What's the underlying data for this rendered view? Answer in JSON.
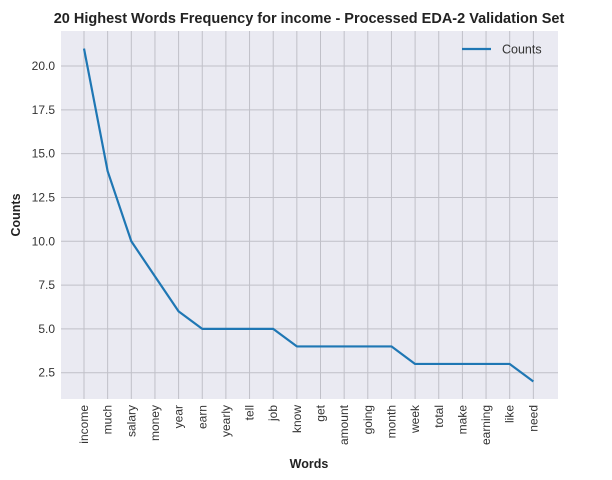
{
  "chart_data": {
    "type": "line",
    "title": "20 Highest Words Frequency for income - Processed EDA-2 Validation Set",
    "xlabel": "Words",
    "ylabel": "Counts",
    "categories": [
      "income",
      "much",
      "salary",
      "money",
      "year",
      "earn",
      "yearly",
      "tell",
      "job",
      "know",
      "get",
      "amount",
      "going",
      "month",
      "week",
      "total",
      "make",
      "earning",
      "like",
      "need"
    ],
    "series": [
      {
        "name": "Counts",
        "color": "#1f77b4",
        "values": [
          21,
          14,
          10,
          8,
          6,
          5,
          5,
          5,
          5,
          4,
          4,
          4,
          4,
          4,
          3,
          3,
          3,
          3,
          3,
          2
        ]
      }
    ],
    "ylim": [
      1.0,
      22.0
    ],
    "yticks": [
      2.5,
      5.0,
      7.5,
      10.0,
      12.5,
      15.0,
      17.5,
      20.0
    ],
    "ytick_labels": [
      "2.5",
      "5.0",
      "7.5",
      "10.0",
      "12.5",
      "15.0",
      "17.5",
      "20.0"
    ],
    "grid": true,
    "legend_position": "top-right",
    "plot_background": "#eaeaf2",
    "grid_color": "#c0c0c8"
  }
}
